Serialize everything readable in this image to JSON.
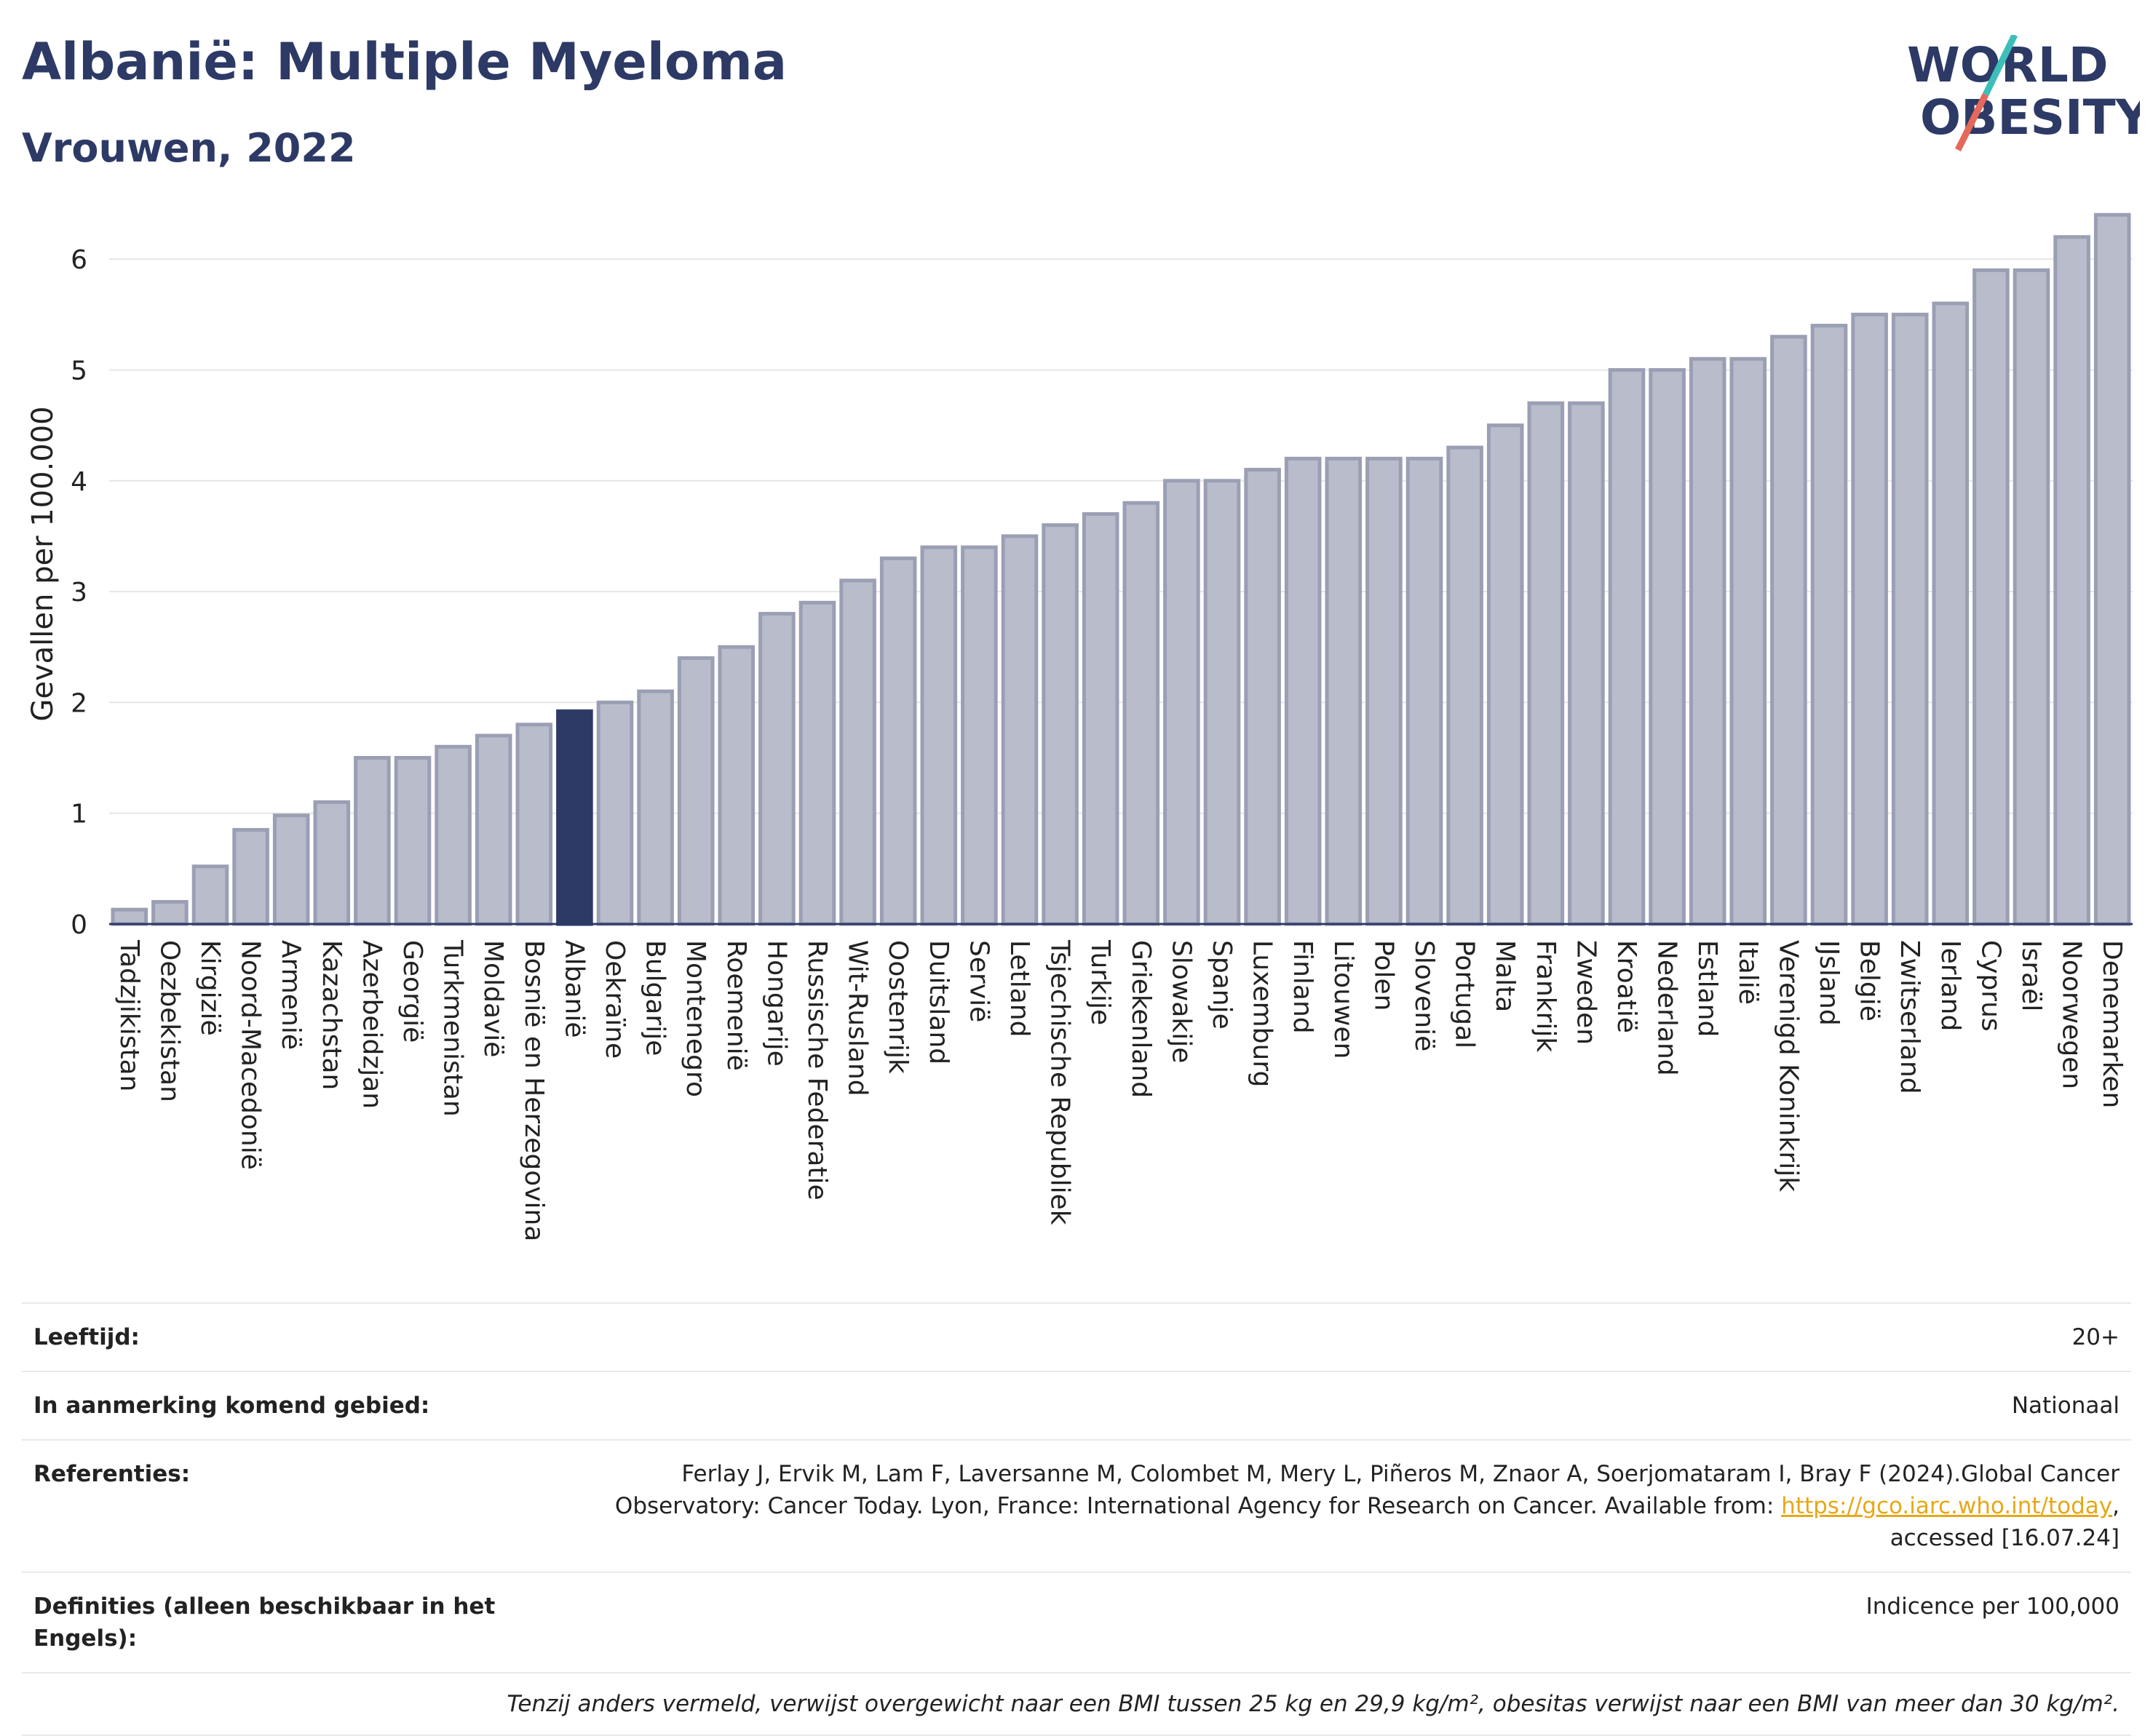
{
  "header": {
    "title": "Albanië: Multiple Myeloma",
    "subtitle": "Vrouwen, 2022",
    "logo_line1": "WORLD",
    "logo_line2": "OBESITY"
  },
  "colors": {
    "title": "#2d3a66",
    "bar": "#b8bccb",
    "bar_border": "#9a9fb4",
    "highlight": "#2d3a66",
    "grid": "#e6e6e6"
  },
  "chart_data": {
    "type": "bar",
    "ylabel": "Gevallen per 100.000",
    "ylim": [
      0,
      6.5
    ],
    "yticks": [
      0,
      1,
      2,
      3,
      4,
      5,
      6
    ],
    "highlight": "Albanië",
    "categories": [
      "Tadzjikistan",
      "Oezbekistan",
      "Kirgizië",
      "Noord-Macedonië",
      "Armenië",
      "Kazachstan",
      "Azerbeidzjan",
      "Georgië",
      "Turkmenistan",
      "Moldavië",
      "Bosnië en Herzegovina",
      "Albanië",
      "Oekraïne",
      "Bulgarije",
      "Montenegro",
      "Roemenië",
      "Hongarije",
      "Russische Federatie",
      "Wit-Rusland",
      "Oostenrijk",
      "Duitsland",
      "Servië",
      "Letland",
      "Tsjechische Republiek",
      "Turkije",
      "Griekenland",
      "Slowakije",
      "Spanje",
      "Luxemburg",
      "Finland",
      "Litouwen",
      "Polen",
      "Slovenië",
      "Portugal",
      "Malta",
      "Frankrijk",
      "Zweden",
      "Kroatië",
      "Nederland",
      "Estland",
      "Italië",
      "Verenigd Koninkrijk",
      "IJsland",
      "België",
      "Zwitserland",
      "Ierland",
      "Cyprus",
      "Israël",
      "Noorwegen",
      "Denemarken"
    ],
    "values": [
      0.13,
      0.2,
      0.52,
      0.85,
      0.98,
      1.1,
      1.5,
      1.5,
      1.6,
      1.7,
      1.8,
      1.92,
      2.0,
      2.1,
      2.4,
      2.5,
      2.8,
      2.9,
      3.1,
      3.3,
      3.4,
      3.4,
      3.5,
      3.6,
      3.7,
      3.8,
      4.0,
      4.0,
      4.1,
      4.2,
      4.2,
      4.2,
      4.2,
      4.3,
      4.5,
      4.7,
      4.7,
      5.0,
      5.0,
      5.1,
      5.1,
      5.3,
      5.4,
      5.5,
      5.5,
      5.6,
      5.9,
      5.9,
      6.2,
      6.4
    ]
  },
  "info": {
    "age_label": "Leeftijd:",
    "age_value": "20+",
    "area_label": "In aanmerking komend gebied:",
    "area_value": "Nationaal",
    "ref_label": "Referenties:",
    "ref_line1": "Ferlay J, Ervik M, Lam F, Laversanne M, Colombet M, Mery L, Piñeros M, Znaor A, Soerjomataram I, Bray F (2024).Global Cancer",
    "ref_line2_pre": "Observatory: Cancer Today. Lyon, France: International Agency for Research on Cancer. Available from: ",
    "ref_link": "https://gco.iarc.who.int/today",
    "ref_line2_post": ",",
    "ref_line3": "accessed [16.07.24]",
    "def_label": "Definities (alleen beschikbaar in het Engels):",
    "def_value": "Indicence per 100,000",
    "note": "Tenzij anders vermeld, verwijst overgewicht naar een BMI tussen 25 kg en 29,9 kg/m², obesitas verwijst naar een BMI van meer dan 30 kg/m²."
  }
}
